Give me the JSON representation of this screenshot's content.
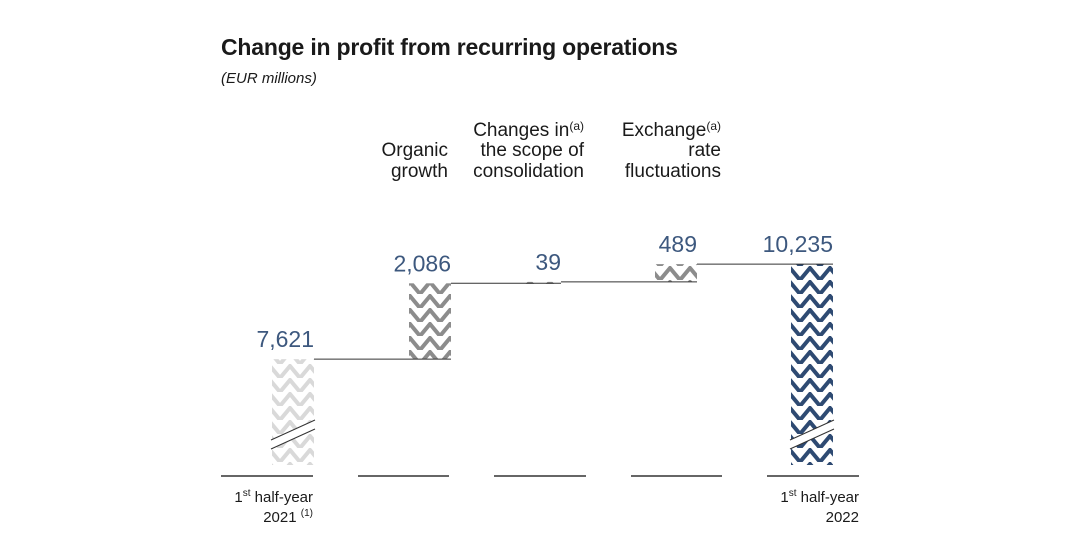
{
  "chart_data": {
    "type": "bar",
    "subtype": "waterfall",
    "title": "Change in profit from recurring operations",
    "subtitle": "(EUR millions)",
    "categories": [
      {
        "lines": [
          "1st half-year",
          "2021 (1)"
        ],
        "header": []
      },
      {
        "lines": [],
        "header": [
          "Organic",
          "growth"
        ]
      },
      {
        "lines": [],
        "header": [
          "Changes in",
          "the scope of",
          "consolidation"
        ],
        "note": "(a)"
      },
      {
        "lines": [],
        "header": [
          "Exchange",
          "rate",
          "fluctuations"
        ],
        "note": "(a)"
      },
      {
        "lines": [
          "1st half-year",
          "2022"
        ],
        "header": []
      }
    ],
    "values": [
      7621,
      2086,
      39,
      489,
      10235
    ],
    "value_labels": [
      "7,621",
      "2,086",
      "39",
      "489",
      "10,235"
    ],
    "kinds": [
      "total",
      "delta",
      "delta",
      "delta",
      "total"
    ],
    "axis_break_on_totals": true,
    "grid": false,
    "colors": {
      "value_text": "#3d587e",
      "start_total": "#d9d9d9",
      "delta": "#8c8c8c",
      "end_total": "#2e4a72",
      "connector": "#333333"
    }
  }
}
